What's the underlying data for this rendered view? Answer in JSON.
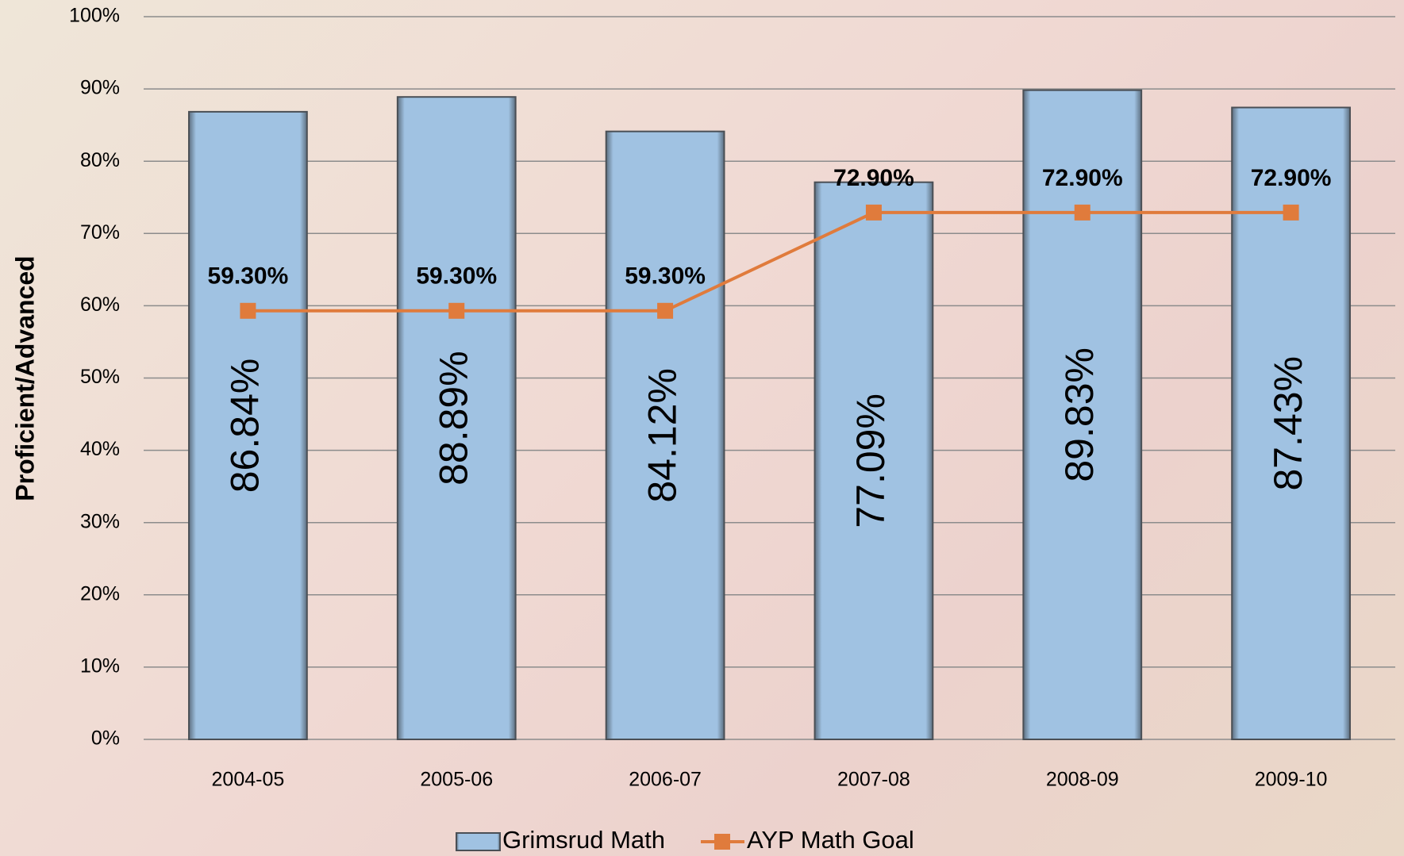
{
  "chart_data": {
    "type": "bar",
    "y_axis_label": "Proficient/Advanced",
    "categories": [
      "2004-05",
      "2005-06",
      "2006-07",
      "2007-08",
      "2008-09",
      "2009-10"
    ],
    "series": [
      {
        "name": "Grimsrud Math",
        "type": "bar",
        "color": "#a0c2e2",
        "values": [
          86.84,
          88.89,
          84.12,
          77.09,
          89.83,
          87.43
        ],
        "value_labels": [
          "86.84%",
          "88.89%",
          "84.12%",
          "77.09%",
          "89.83%",
          "87.43%"
        ]
      },
      {
        "name": "AYP Math Goal",
        "type": "line",
        "color": "#e07b3c",
        "values": [
          59.3,
          59.3,
          59.3,
          72.9,
          72.9,
          72.9
        ],
        "value_labels": [
          "59.30%",
          "59.30%",
          "59.30%",
          "72.90%",
          "72.90%",
          "72.90%"
        ]
      }
    ],
    "ylim": [
      0,
      100
    ],
    "yticks": [
      {
        "value": 0,
        "label": "0%"
      },
      {
        "value": 10,
        "label": "10%"
      },
      {
        "value": 20,
        "label": "20%"
      },
      {
        "value": 30,
        "label": "30%"
      },
      {
        "value": 40,
        "label": "40%"
      },
      {
        "value": 50,
        "label": "50%"
      },
      {
        "value": 60,
        "label": "60%"
      },
      {
        "value": 70,
        "label": "70%"
      },
      {
        "value": 80,
        "label": "80%"
      },
      {
        "value": 90,
        "label": "90%"
      },
      {
        "value": 100,
        "label": "100%"
      }
    ],
    "grid": true,
    "legend": "bottom"
  }
}
